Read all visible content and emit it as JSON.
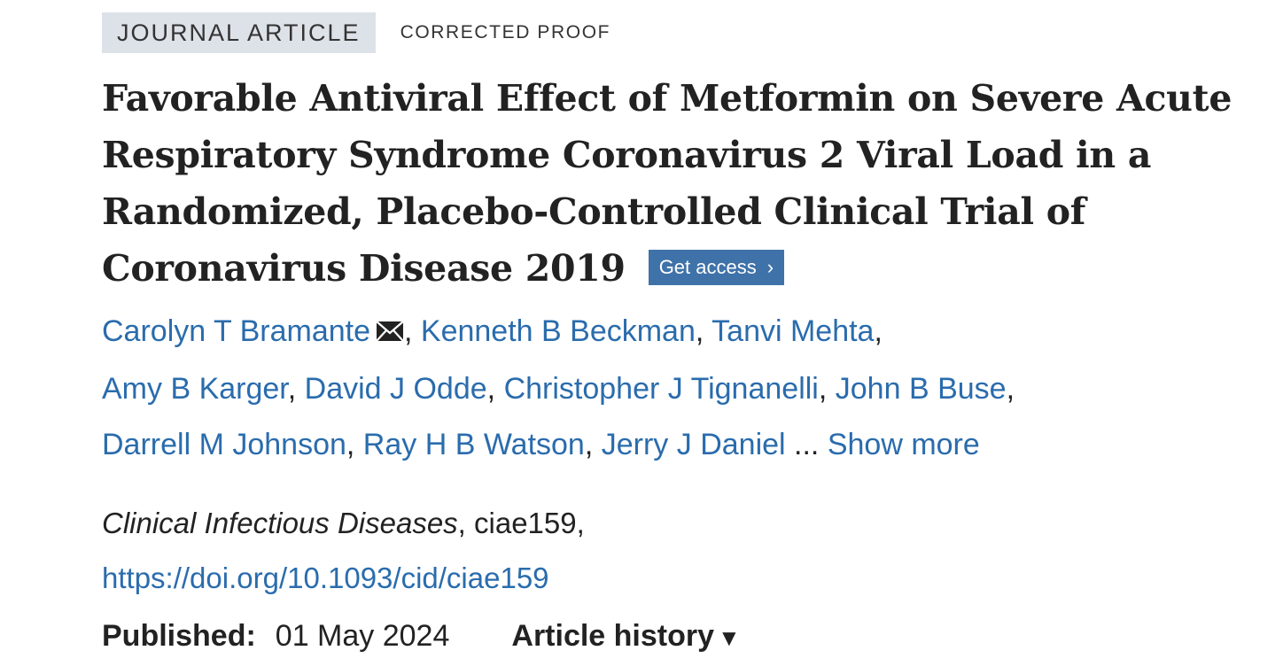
{
  "labels": {
    "type": "JOURNAL ARTICLE",
    "status": "CORRECTED PROOF"
  },
  "title": "Favorable Antiviral Effect of Metformin on Severe Acute Respiratory Syndrome Coronavirus 2 Viral Load in a Randomized, Placebo-Controlled Clinical Trial of Coronavirus Disease 2019",
  "access_button": {
    "label": "Get access",
    "chevron": "›"
  },
  "authors": [
    "Carolyn T Bramante",
    "Kenneth B Beckman",
    "Tanvi Mehta",
    "Amy B Karger",
    "David J Odde",
    "Christopher J Tignanelli",
    "John B Buse",
    "Darrell M Johnson",
    "Ray H B Watson",
    "Jerry J Daniel"
  ],
  "authors_separator": ", ",
  "authors_ellipsis": " ... ",
  "show_more": "Show more",
  "icons": {
    "corresponding_author": "envelope-icon",
    "history_toggle": "triangle-down-icon"
  },
  "citation": {
    "journal": "Clinical Infectious Diseases",
    "article_id": ", ciae159,",
    "doi": "https://doi.org/10.1093/cid/ciae159"
  },
  "published": {
    "label": "Published:",
    "date": "01 May 2024"
  },
  "history": {
    "label": "Article history",
    "arrow": "▼"
  },
  "colors": {
    "link": "#2a6cad",
    "button": "#3f72a9",
    "label_bg": "#dde1e8"
  }
}
